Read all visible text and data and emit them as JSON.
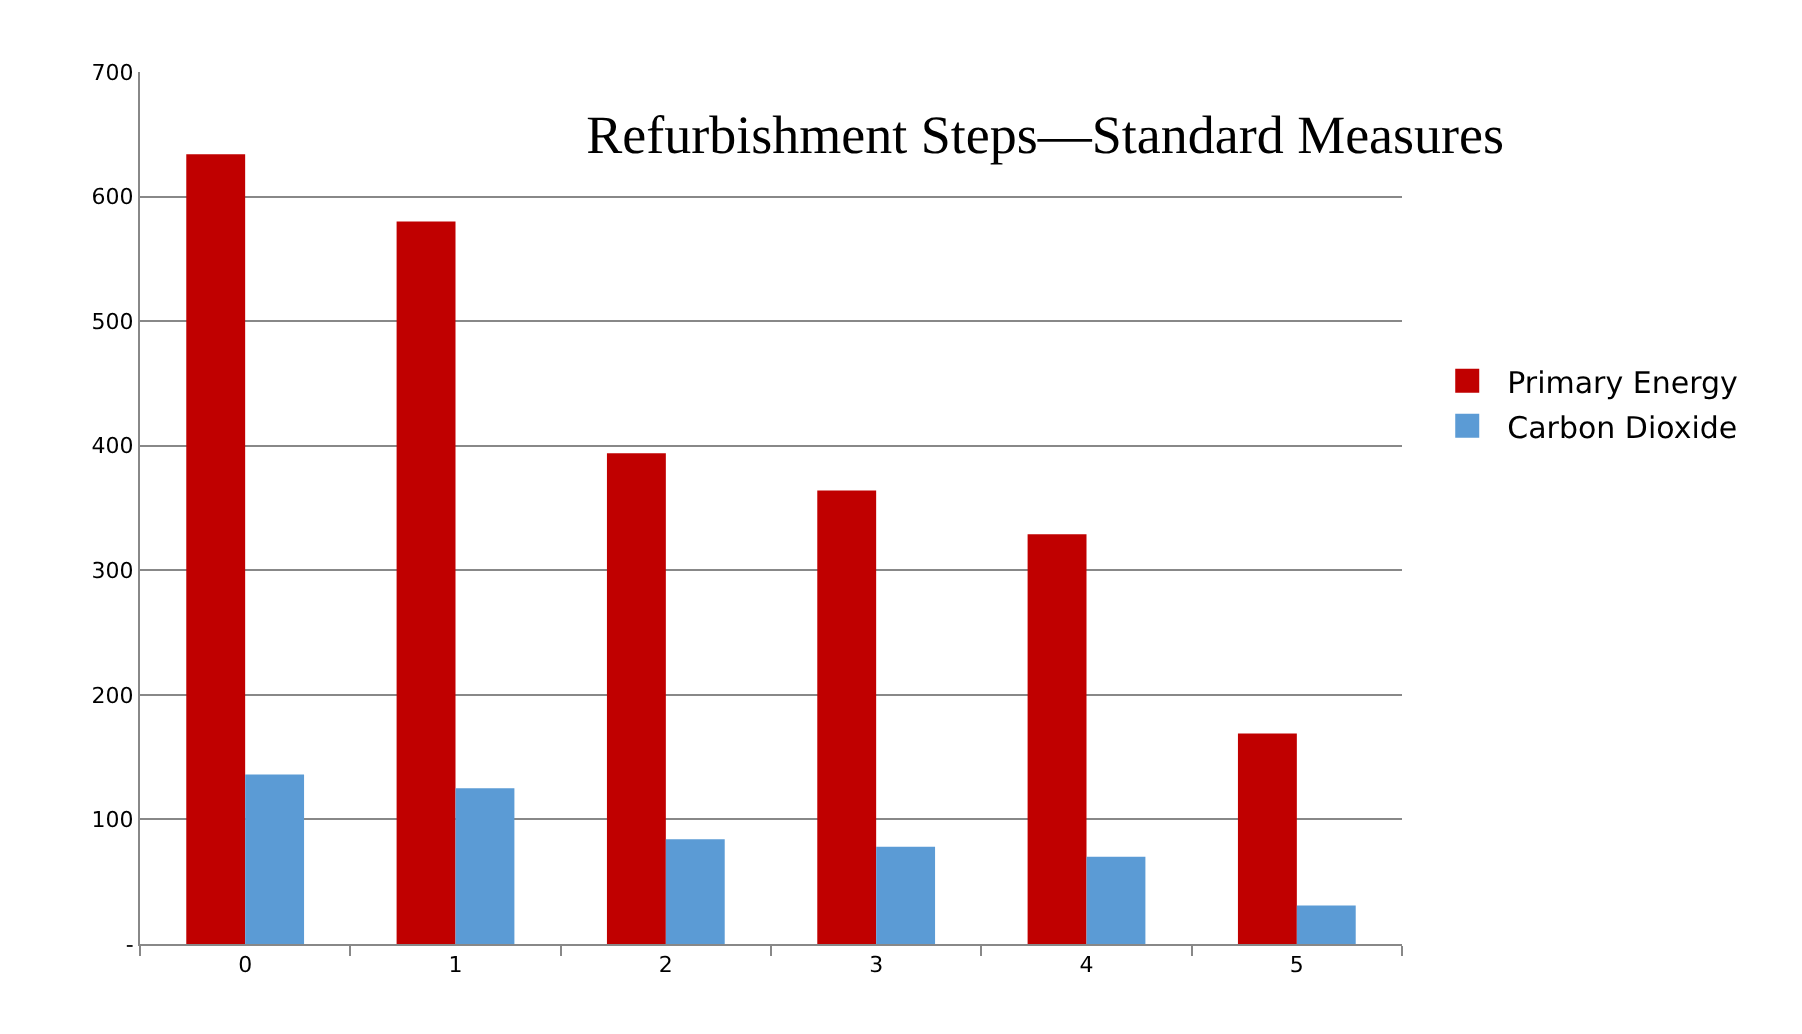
{
  "chart_data": {
    "type": "bar",
    "title": "Refurbishment Steps—Standard Measures",
    "categories": [
      "0",
      "1",
      "2",
      "3",
      "4",
      "5"
    ],
    "series": [
      {
        "name": "Primary Energy",
        "color": "#c00000",
        "values": [
          634,
          580,
          394,
          364,
          329,
          169
        ]
      },
      {
        "name": "Carbon Dioxide",
        "color": "#5b9bd5",
        "values": [
          136,
          125,
          84,
          78,
          70,
          31
        ]
      }
    ],
    "ylim": [
      0,
      700
    ],
    "yticks": [
      {
        "value": 0,
        "label": "-"
      },
      100,
      200,
      300,
      400,
      500,
      600,
      700
    ],
    "grid": "y",
    "legend": "right"
  }
}
